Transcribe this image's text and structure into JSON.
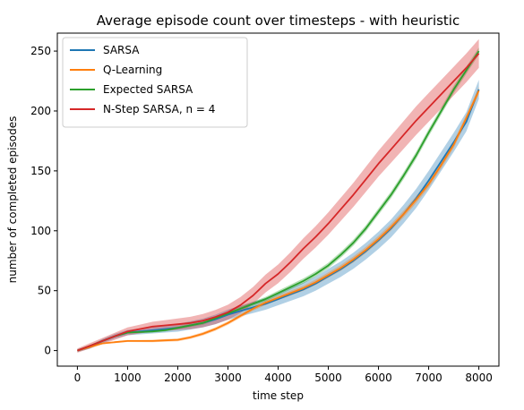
{
  "chart_data": {
    "type": "line",
    "title": "Average episode count over timesteps - with heuristic",
    "xlabel": "time step",
    "ylabel": "number of completed episodes",
    "xlim": [
      -400,
      8400
    ],
    "ylim": [
      -13,
      265
    ],
    "xticks": [
      0,
      1000,
      2000,
      3000,
      4000,
      5000,
      6000,
      7000,
      8000
    ],
    "yticks": [
      0,
      50,
      100,
      150,
      200,
      250
    ],
    "grid": false,
    "legend_position": "top-left",
    "x": [
      0,
      250,
      500,
      750,
      1000,
      1250,
      1500,
      1750,
      2000,
      2250,
      2500,
      2750,
      3000,
      3250,
      3500,
      3750,
      4000,
      4250,
      4500,
      4750,
      5000,
      5250,
      5500,
      5750,
      6000,
      6250,
      6500,
      6750,
      7000,
      7250,
      7500,
      7750,
      8000
    ],
    "series": [
      {
        "name": "SARSA",
        "color": "#1f77b4",
        "values": [
          0,
          3,
          8,
          12,
          15,
          16,
          17,
          18,
          19,
          21,
          23,
          26,
          30,
          33,
          36,
          39,
          43,
          47,
          51,
          56,
          62,
          68,
          75,
          83,
          92,
          102,
          114,
          127,
          142,
          158,
          174,
          191,
          218
        ],
        "band": 8
      },
      {
        "name": "Q-Learning",
        "color": "#ff7f0e",
        "values": [
          0,
          3,
          6,
          7,
          8,
          8,
          8,
          8.5,
          9,
          11,
          14,
          18,
          23,
          29,
          35,
          40,
          44,
          48,
          52,
          57,
          63,
          69,
          76,
          84,
          93,
          103,
          114,
          126,
          139,
          155,
          172,
          194,
          217
        ],
        "band": 3
      },
      {
        "name": "Expected SARSA",
        "color": "#2ca02c",
        "values": [
          0,
          4,
          8,
          12,
          15,
          15.5,
          16,
          17,
          19,
          21,
          23,
          27,
          31,
          35,
          39,
          43,
          48,
          53,
          58,
          64,
          71,
          80,
          90,
          102,
          116,
          130,
          146,
          163,
          182,
          200,
          218,
          234,
          250
        ],
        "band": 3
      },
      {
        "name": "N-Step SARSA, n = 4",
        "color": "#d62728",
        "values": [
          0,
          4,
          8,
          12,
          16,
          18,
          20,
          21,
          22,
          23,
          25,
          28,
          32,
          38,
          46,
          56,
          64,
          74,
          85,
          95,
          106,
          118,
          130,
          143,
          156,
          168,
          180,
          192,
          203,
          214,
          225,
          236,
          248
        ],
        "band": 12
      }
    ]
  }
}
